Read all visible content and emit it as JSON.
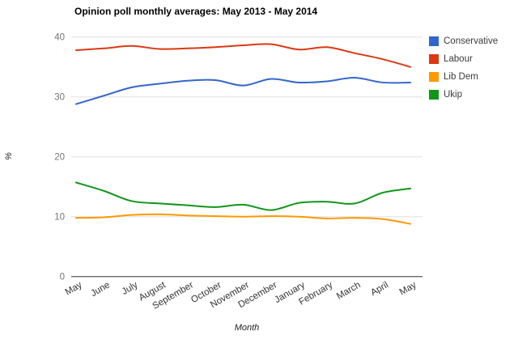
{
  "chart_data": {
    "type": "line",
    "title": "Opinion poll monthly averages: May 2013 - May 2014",
    "xlabel": "Month",
    "ylabel": "%",
    "ylim": [
      0,
      40
    ],
    "yticks": [
      0,
      10,
      20,
      30,
      40
    ],
    "grid": true,
    "legend_position": "right",
    "curve": "smooth",
    "categories": [
      "May",
      "June",
      "July",
      "August",
      "September",
      "October",
      "November",
      "December",
      "January",
      "February",
      "March",
      "April",
      "May"
    ],
    "series": [
      {
        "name": "Conservative",
        "color": "#3366CC",
        "values": [
          28.8,
          30.2,
          31.6,
          32.2,
          32.7,
          32.8,
          31.9,
          33.0,
          32.4,
          32.6,
          33.2,
          32.4,
          32.4
        ]
      },
      {
        "name": "Labour",
        "color": "#DC3912",
        "values": [
          37.8,
          38.1,
          38.5,
          38.0,
          38.1,
          38.3,
          38.6,
          38.8,
          37.9,
          38.3,
          37.3,
          36.3,
          35.0
        ]
      },
      {
        "name": "Lib Dem",
        "color": "#FF9900",
        "values": [
          9.8,
          9.9,
          10.3,
          10.4,
          10.2,
          10.1,
          10.0,
          10.1,
          10.0,
          9.7,
          9.8,
          9.6,
          8.8
        ]
      },
      {
        "name": "Ukip",
        "color": "#109618",
        "values": [
          15.7,
          14.3,
          12.6,
          12.2,
          11.9,
          11.6,
          12.0,
          11.1,
          12.3,
          12.5,
          12.2,
          14.0,
          14.7
        ]
      }
    ],
    "colors": {
      "gridline": "#e0e0e0",
      "baseline": "#333333",
      "y_tick_text": "#757575",
      "x_tick_text": "#333333"
    }
  }
}
